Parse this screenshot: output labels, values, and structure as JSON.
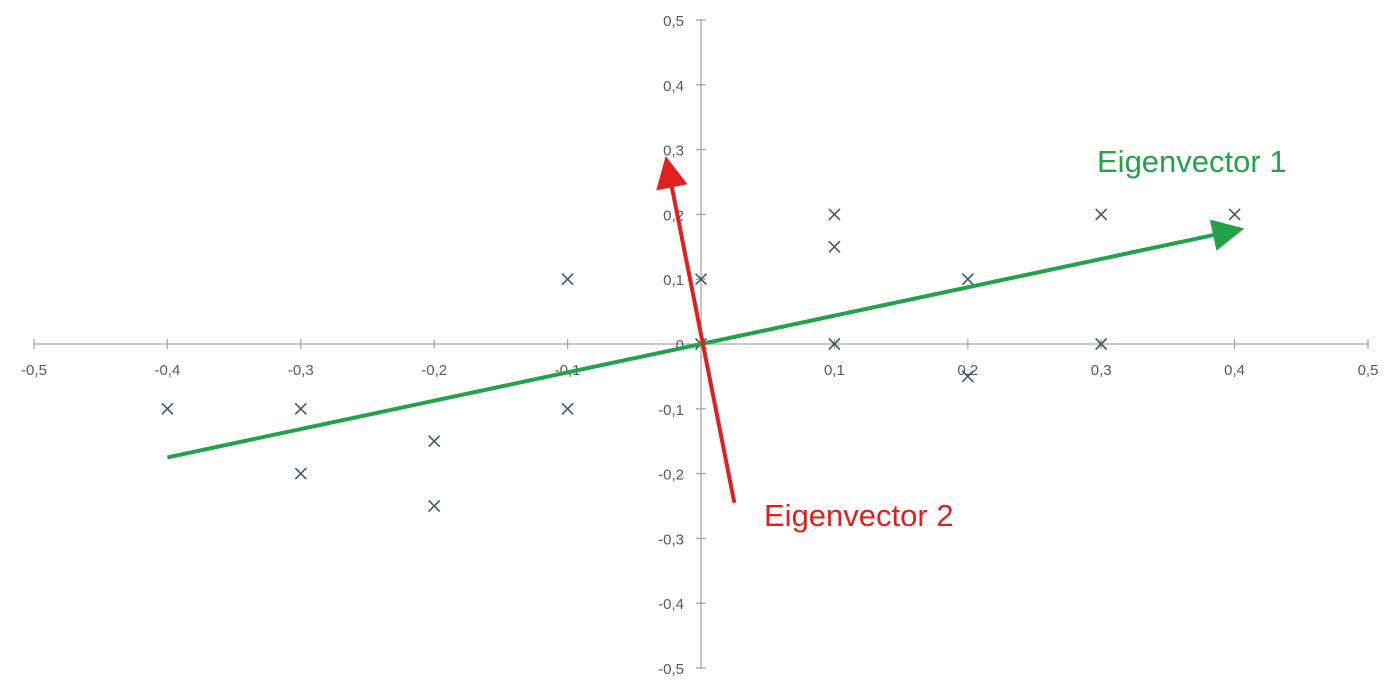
{
  "chart_data": {
    "type": "scatter",
    "title": "",
    "xlabel": "",
    "ylabel": "",
    "xlim": [
      -0.5,
      0.5
    ],
    "ylim": [
      -0.5,
      0.5
    ],
    "x_ticks": [
      -0.5,
      -0.4,
      -0.3,
      -0.2,
      -0.1,
      0,
      0.1,
      0.2,
      0.3,
      0.4,
      0.5
    ],
    "y_ticks": [
      -0.5,
      -0.4,
      -0.3,
      -0.2,
      -0.1,
      0,
      0.1,
      0.2,
      0.3,
      0.4,
      0.5
    ],
    "x_tick_labels": [
      "-0,5",
      "-0,4",
      "-0,3",
      "-0,2",
      "-0,1",
      "0",
      "0,1",
      "0,2",
      "0,3",
      "0,4",
      "0,5"
    ],
    "y_tick_labels": [
      "-0,5",
      "-0,4",
      "-0,3",
      "-0,2",
      "-0,1",
      "0",
      "0,1",
      "0,2",
      "0,3",
      "0,4",
      "0,5"
    ],
    "axes_cross_at_origin": true,
    "grid": false,
    "legend": "none",
    "marker": "x",
    "marker_color": "#3e5a6e",
    "series": [
      {
        "points": [
          {
            "x": -0.4,
            "y": -0.1
          },
          {
            "x": -0.3,
            "y": -0.1
          },
          {
            "x": -0.3,
            "y": -0.2
          },
          {
            "x": -0.2,
            "y": -0.15
          },
          {
            "x": -0.2,
            "y": -0.25
          },
          {
            "x": -0.1,
            "y": 0.1
          },
          {
            "x": -0.1,
            "y": -0.1
          },
          {
            "x": 0,
            "y": 0.1
          },
          {
            "x": 0,
            "y": 0
          },
          {
            "x": 0.1,
            "y": 0.2
          },
          {
            "x": 0.1,
            "y": 0.15
          },
          {
            "x": 0.1,
            "y": 0
          },
          {
            "x": 0.2,
            "y": 0.1
          },
          {
            "x": 0.2,
            "y": -0.05
          },
          {
            "x": 0.3,
            "y": 0.2
          },
          {
            "x": 0.3,
            "y": 0
          },
          {
            "x": 0.4,
            "y": 0.2
          }
        ]
      }
    ],
    "vectors": [
      {
        "label": "Eigenvector 1",
        "color": "#22a34a",
        "from": {
          "x": -0.4,
          "y": -0.175
        },
        "to": {
          "x": 0.4,
          "y": 0.175
        }
      },
      {
        "label": "Eigenvector 2",
        "color": "#e21f1f",
        "from": {
          "x": 0.025,
          "y": -0.245
        },
        "to": {
          "x": -0.025,
          "y": 0.275
        }
      }
    ]
  }
}
